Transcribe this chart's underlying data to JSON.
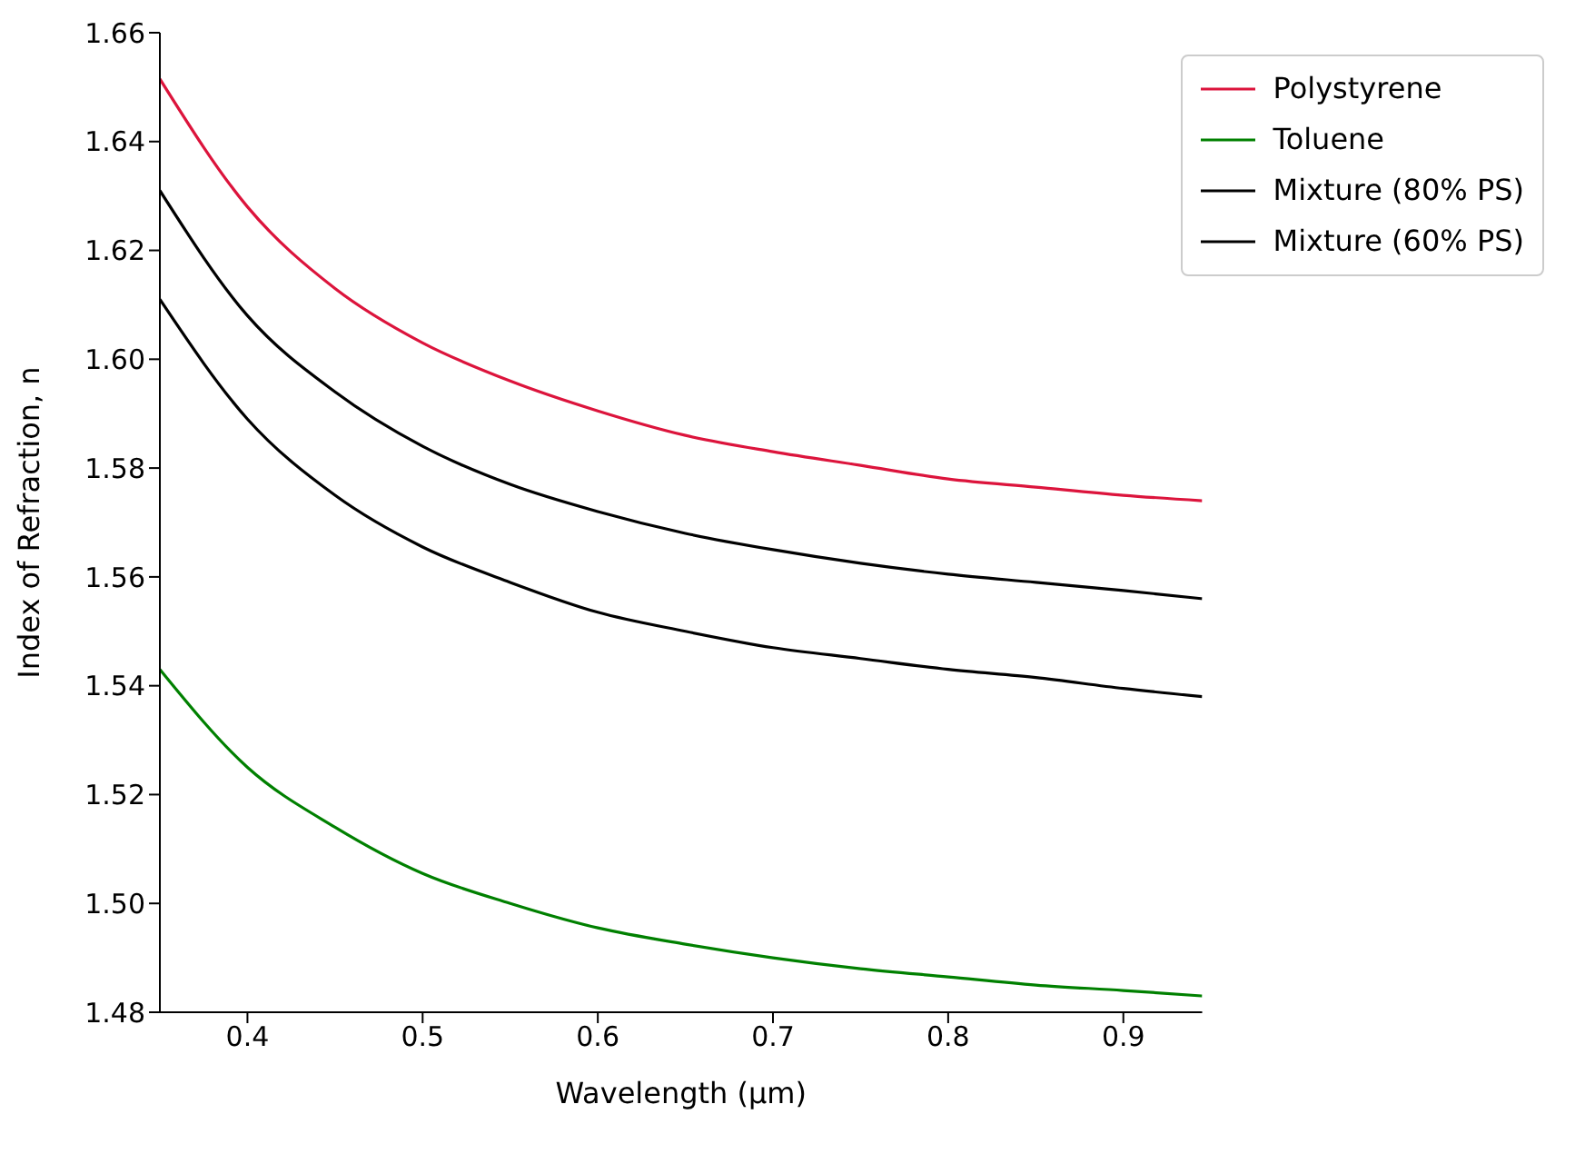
{
  "chart_data": {
    "type": "line",
    "xlabel": "Wavelength (μm)",
    "ylabel": "Index of Refraction, n",
    "x": [
      0.35,
      0.4,
      0.45,
      0.5,
      0.55,
      0.6,
      0.65,
      0.7,
      0.75,
      0.8,
      0.85,
      0.9,
      0.945
    ],
    "series": [
      {
        "name": "Polystyrene",
        "color": "#dc143c",
        "values": [
          1.6515,
          1.628,
          1.613,
          1.603,
          1.596,
          1.5905,
          1.586,
          1.583,
          1.5805,
          1.578,
          1.5765,
          1.575,
          1.574
        ]
      },
      {
        "name": "Toluene",
        "color": "#008000",
        "values": [
          1.543,
          1.525,
          1.514,
          1.5055,
          1.5,
          1.4955,
          1.4925,
          1.49,
          1.488,
          1.4865,
          1.485,
          1.484,
          1.483
        ]
      },
      {
        "name": "Mixture (80% PS)",
        "color": "#000000",
        "values": [
          1.631,
          1.608,
          1.594,
          1.584,
          1.577,
          1.572,
          1.568,
          1.565,
          1.5625,
          1.5605,
          1.559,
          1.5575,
          1.556
        ]
      },
      {
        "name": "Mixture (60% PS)",
        "color": "#000000",
        "values": [
          1.611,
          1.589,
          1.575,
          1.5655,
          1.559,
          1.5535,
          1.55,
          1.547,
          1.545,
          1.543,
          1.5415,
          1.5395,
          1.538
        ]
      }
    ],
    "xlim": [
      0.35,
      0.945
    ],
    "xticks": [
      0.4,
      0.5,
      0.6,
      0.7,
      0.8,
      0.9
    ],
    "ylim": [
      1.48,
      1.66
    ],
    "yticks": [
      {
        "value": 1.48,
        "label": "1.48"
      },
      {
        "value": 1.5,
        "label": "1.50"
      },
      {
        "value": 1.52,
        "label": "1.52"
      },
      {
        "value": 1.54,
        "label": "1.54"
      },
      {
        "value": 1.56,
        "label": "1.56"
      },
      {
        "value": 1.58,
        "label": "1.58"
      },
      {
        "value": 1.6,
        "label": "1.60"
      },
      {
        "value": 1.62,
        "label": "1.62"
      },
      {
        "value": 1.64,
        "label": "1.64"
      },
      {
        "value": 1.66,
        "label": "1.66"
      }
    ],
    "legend": "top right",
    "grid": false,
    "marker": "none",
    "line_style": "solid"
  }
}
